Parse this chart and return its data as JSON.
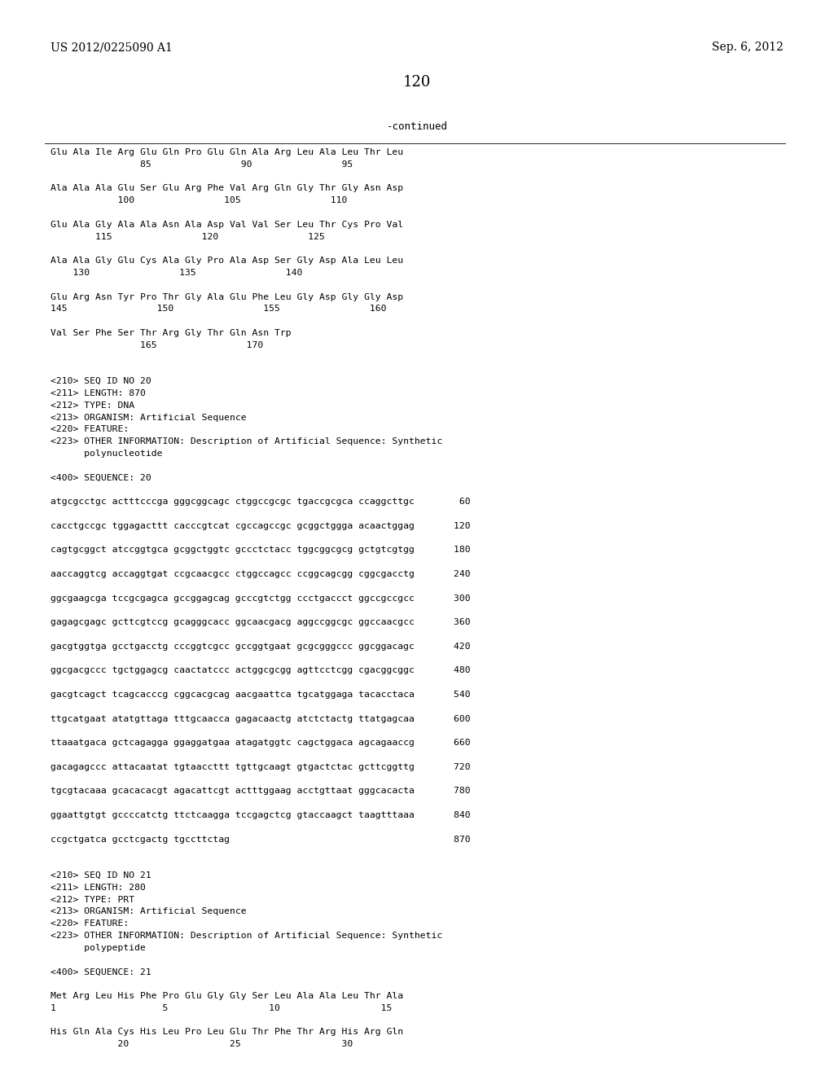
{
  "header_left": "US 2012/0225090 A1",
  "header_right": "Sep. 6, 2012",
  "page_number": "120",
  "continued_label": "-continued",
  "background_color": "#ffffff",
  "text_color": "#000000",
  "body_lines": [
    "Glu Ala Ile Arg Glu Gln Pro Glu Gln Ala Arg Leu Ala Leu Thr Leu",
    "                85                90                95",
    "",
    "Ala Ala Ala Glu Ser Glu Arg Phe Val Arg Gln Gly Thr Gly Asn Asp",
    "            100                105                110",
    "",
    "Glu Ala Gly Ala Ala Asn Ala Asp Val Val Ser Leu Thr Cys Pro Val",
    "        115                120                125",
    "",
    "Ala Ala Gly Glu Cys Ala Gly Pro Ala Asp Ser Gly Asp Ala Leu Leu",
    "    130                135                140",
    "",
    "Glu Arg Asn Tyr Pro Thr Gly Ala Glu Phe Leu Gly Asp Gly Gly Asp",
    "145                150                155                160",
    "",
    "Val Ser Phe Ser Thr Arg Gly Thr Gln Asn Trp",
    "                165                170",
    "",
    "",
    "<210> SEQ ID NO 20",
    "<211> LENGTH: 870",
    "<212> TYPE: DNA",
    "<213> ORGANISM: Artificial Sequence",
    "<220> FEATURE:",
    "<223> OTHER INFORMATION: Description of Artificial Sequence: Synthetic",
    "      polynucleotide",
    "",
    "<400> SEQUENCE: 20",
    "",
    "atgcgcctgc actttcccga gggcggcagc ctggccgcgc tgaccgcgca ccaggcttgc        60",
    "",
    "cacctgccgc tggagacttt cacccgtcat cgccagccgc gcggctggga acaactggag       120",
    "",
    "cagtgcggct atccggtgca gcggctggtc gccctctacc tggcggcgcg gctgtcgtgg       180",
    "",
    "aaccaggtcg accaggtgat ccgcaacgcc ctggccagcc ccggcagcgg cggcgacctg       240",
    "",
    "ggcgaagcga tccgcgagca gccggagcag gcccgtctgg ccctgaccct ggccgccgcc       300",
    "",
    "gagagcgagc gcttcgtccg gcagggcacc ggcaacgacg aggccggcgc ggccaacgcc       360",
    "",
    "gacgtggtga gcctgacctg cccggtcgcc gccggtgaat gcgcgggccc ggcggacagc       420",
    "",
    "ggcgacgccc tgctggagcg caactatccc actggcgcgg agttcctcgg cgacggcggc       480",
    "",
    "gacgtcagct tcagcacccg cggcacgcag aacgaattca tgcatggaga tacacctaca       540",
    "",
    "ttgcatgaat atatgttaga tttgcaacca gagacaactg atctctactg ttatgagcaa       600",
    "",
    "ttaaatgaca gctcagagga ggaggatgaa atagatggtc cagctggaca agcagaaccg       660",
    "",
    "gacagagccc attacaatat tgtaaccttt tgttgcaagt gtgactctac gcttcggttg       720",
    "",
    "tgcgtacaaa gcacacacgt agacattcgt actttggaag acctgttaat gggcacacta       780",
    "",
    "ggaattgtgt gccccatctg ttctcaagga tccgagctcg gtaccaagct taagtttaaa       840",
    "",
    "ccgctgatca gcctcgactg tgccttctag                                        870",
    "",
    "",
    "<210> SEQ ID NO 21",
    "<211> LENGTH: 280",
    "<212> TYPE: PRT",
    "<213> ORGANISM: Artificial Sequence",
    "<220> FEATURE:",
    "<223> OTHER INFORMATION: Description of Artificial Sequence: Synthetic",
    "      polypeptide",
    "",
    "<400> SEQUENCE: 21",
    "",
    "Met Arg Leu His Phe Pro Glu Gly Gly Ser Leu Ala Ala Leu Thr Ala",
    "1                   5                  10                  15",
    "",
    "His Gln Ala Cys His Leu Pro Leu Glu Thr Phe Thr Arg His Arg Gln",
    "            20                  25                  30"
  ]
}
